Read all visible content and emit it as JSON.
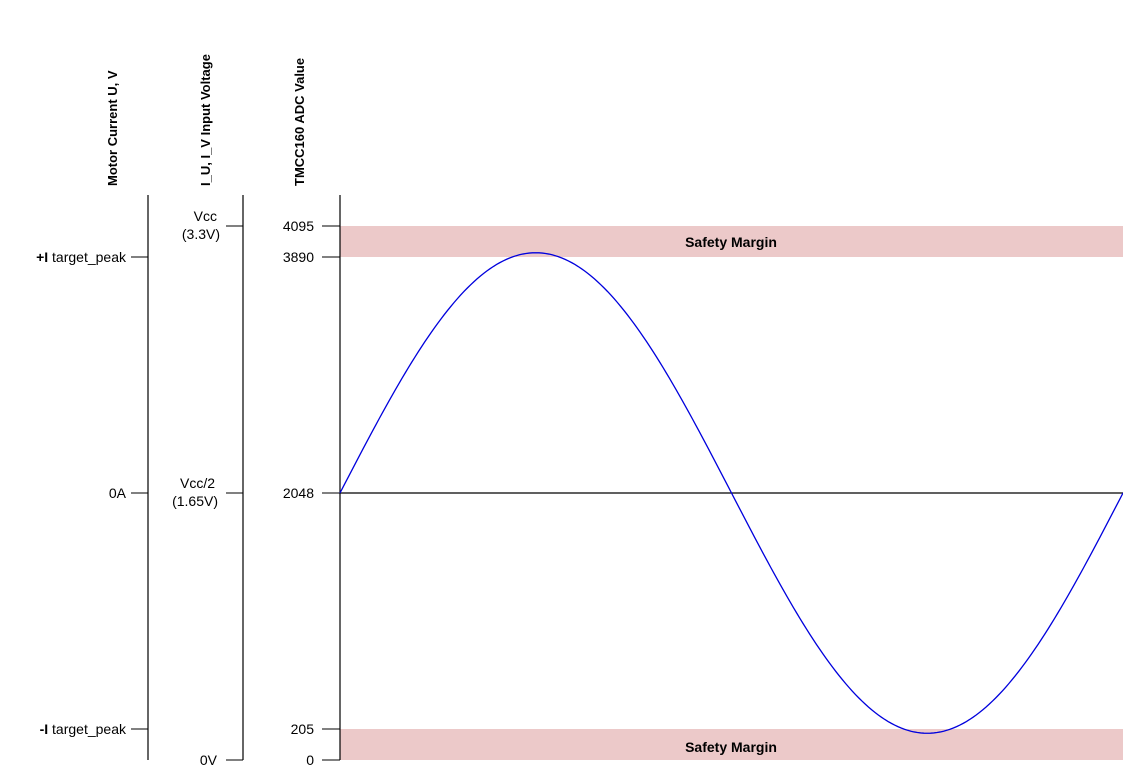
{
  "axes": {
    "motor_current": {
      "title": "Motor Current U, V",
      "ticks": [
        {
          "bold": "+I",
          "text": " target_peak"
        },
        {
          "bold": "",
          "text": "0A"
        },
        {
          "bold": "-I",
          "text": " target_peak"
        }
      ]
    },
    "input_voltage": {
      "title": "I_U, I_V Input Voltage",
      "ticks": [
        {
          "line1": "Vcc",
          "line2": "(3.3V)"
        },
        {
          "line1": "Vcc/2",
          "line2": "(1.65V)"
        },
        {
          "line1": "0V",
          "line2": ""
        }
      ]
    },
    "adc": {
      "title": "TMCC160 ADC Value",
      "ticks": [
        "4095",
        "3890",
        "2048",
        "205",
        "0"
      ]
    }
  },
  "safety_margin": {
    "label": "Safety Margin",
    "color": "#ecc9c9"
  },
  "curve": {
    "color": "#0000dd",
    "type": "sine",
    "center": 2048,
    "peak": 3890,
    "trough": 205
  }
}
